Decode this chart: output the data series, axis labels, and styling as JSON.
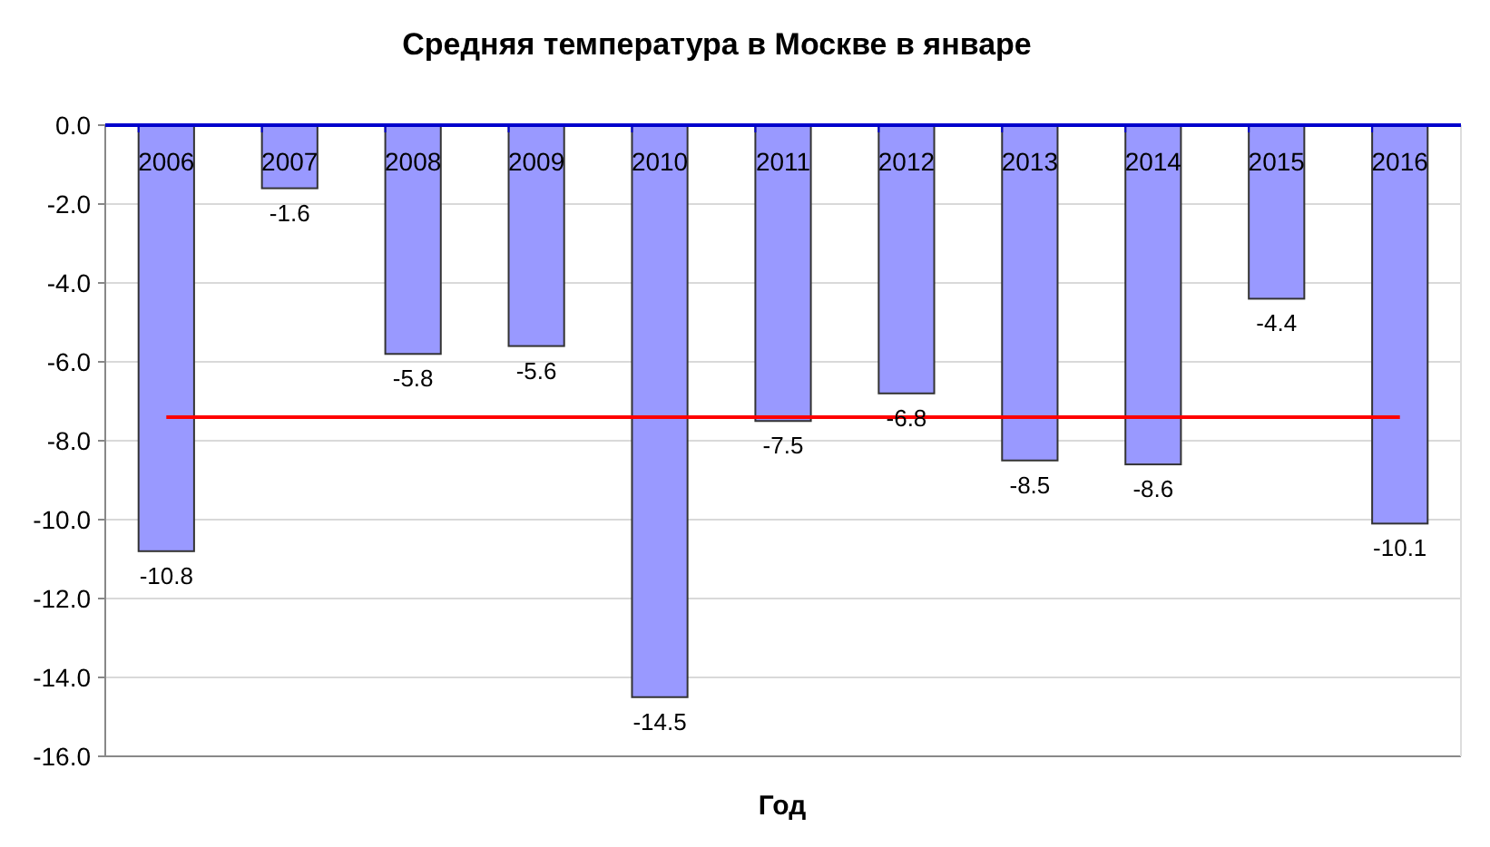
{
  "chart_data": {
    "type": "bar",
    "title": "Средняя температура в Москве в январе",
    "xlabel": "Год",
    "categories": [
      "2006",
      "2007",
      "2008",
      "2009",
      "2010",
      "2011",
      "2012",
      "2013",
      "2014",
      "2015",
      "2016"
    ],
    "values": [
      -10.8,
      -1.6,
      -5.8,
      -5.6,
      -14.5,
      -7.5,
      -6.8,
      -8.5,
      -8.6,
      -4.4,
      -10.1
    ],
    "color": "#9999ff",
    "ylim": [
      -16,
      0
    ],
    "yticks": [
      {
        "value": 0,
        "label": "0.0"
      },
      {
        "value": -2,
        "label": "-2.0"
      },
      {
        "value": -4,
        "label": "-4.0"
      },
      {
        "value": -6,
        "label": "-6.0"
      },
      {
        "value": -8,
        "label": "-8.0"
      },
      {
        "value": -10,
        "label": "-10.0"
      },
      {
        "value": -12,
        "label": "-12.0"
      },
      {
        "value": -14,
        "label": "-14.0"
      },
      {
        "value": -16,
        "label": "-16.0"
      }
    ],
    "grid": "y",
    "data_labels": true,
    "ref_lines": [
      {
        "axis": "y",
        "value": -7.4,
        "color": "#ff0000"
      }
    ]
  }
}
